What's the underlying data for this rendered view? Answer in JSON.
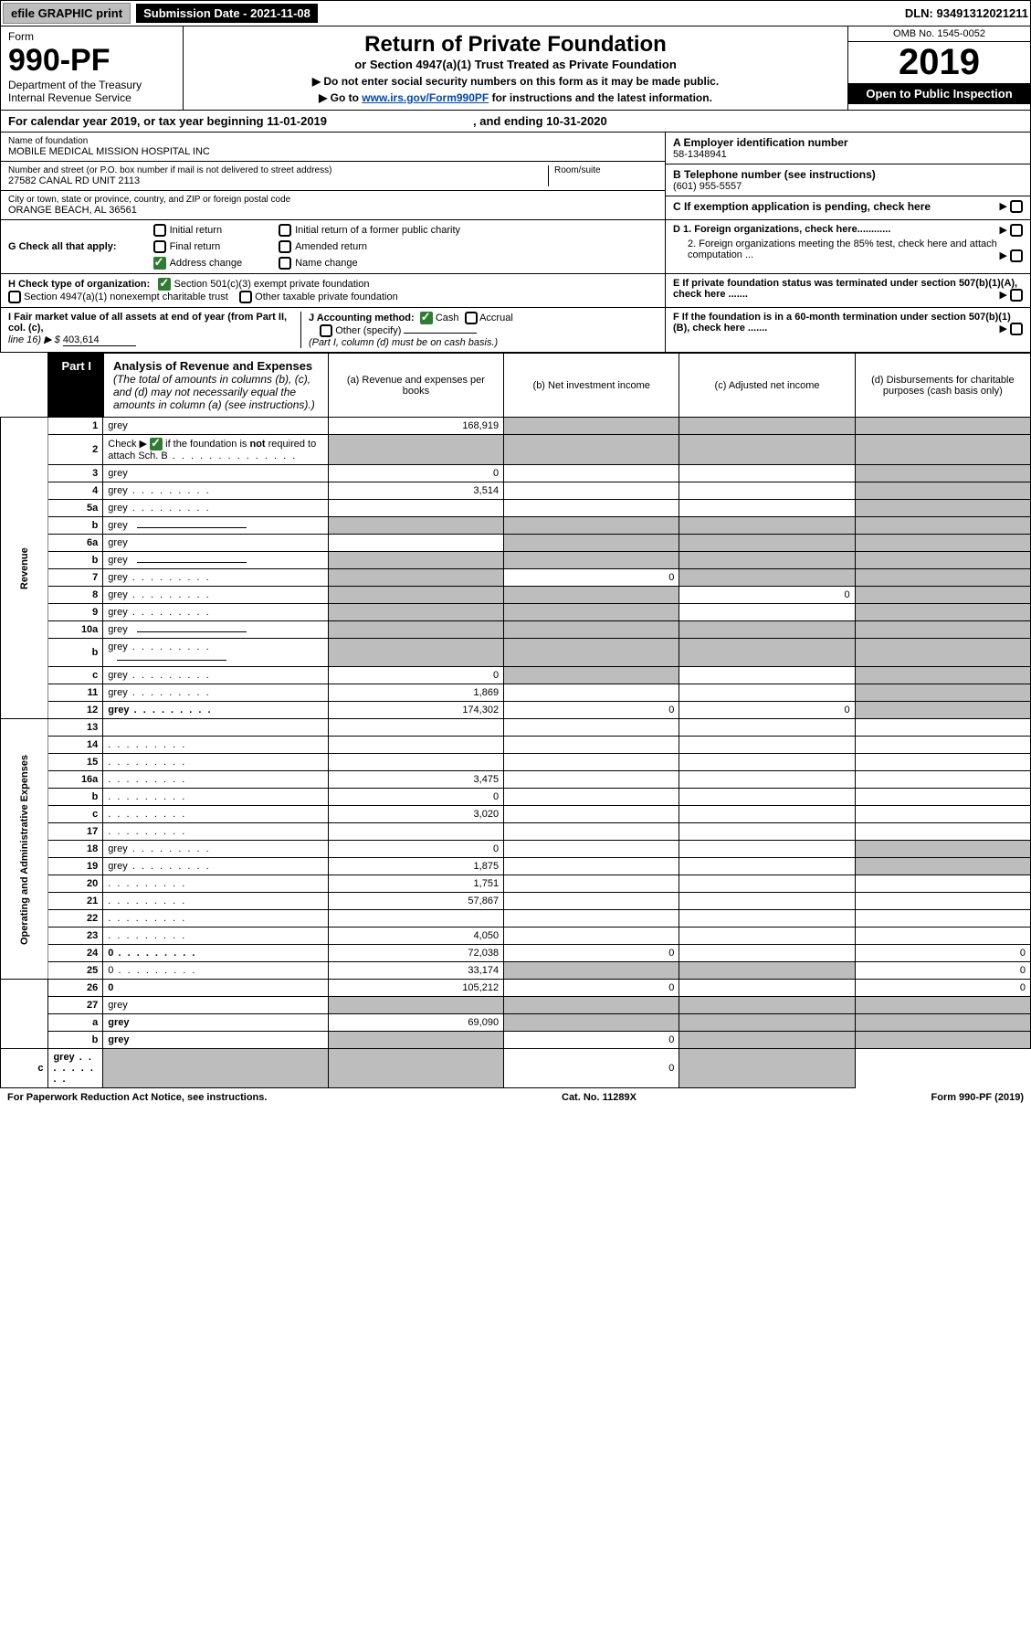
{
  "topbar": {
    "efile": "efile GRAPHIC print",
    "submission": "Submission Date - 2021-11-08",
    "dln": "DLN: 93491312021211"
  },
  "header": {
    "form_word": "Form",
    "form_number": "990-PF",
    "dept1": "Department of the Treasury",
    "dept2": "Internal Revenue Service",
    "title": "Return of Private Foundation",
    "subtitle": "or Section 4947(a)(1) Trust Treated as Private Foundation",
    "note1": "▶ Do not enter social security numbers on this form as it may be made public.",
    "note2_pre": "▶ Go to ",
    "note2_link": "www.irs.gov/Form990PF",
    "note2_post": " for instructions and the latest information.",
    "omb": "OMB No. 1545-0052",
    "year": "2019",
    "open": "Open to Public Inspection"
  },
  "cal": {
    "text": "For calendar year 2019, or tax year beginning 11-01-2019",
    "end": ", and ending 10-31-2020"
  },
  "foundation": {
    "name_lbl": "Name of foundation",
    "name": "MOBILE MEDICAL MISSION HOSPITAL INC",
    "addr_lbl": "Number and street (or P.O. box number if mail is not delivered to street address)",
    "addr": "27582 CANAL RD UNIT 2113",
    "room_lbl": "Room/suite",
    "city_lbl": "City or town, state or province, country, and ZIP or foreign postal code",
    "city": "ORANGE BEACH, AL  36561",
    "ein_lbl": "A Employer identification number",
    "ein": "58-1348941",
    "tel_lbl": "B Telephone number (see instructions)",
    "tel": "(601) 955-5557",
    "c_lbl": "C If exemption application is pending, check here",
    "d1": "D 1. Foreign organizations, check here............",
    "d2": "2. Foreign organizations meeting the 85% test, check here and attach computation ...",
    "e": "E  If private foundation status was terminated under section 507(b)(1)(A), check here .......",
    "f": "F  If the foundation is in a 60-month termination under section 507(b)(1)(B), check here .......",
    "g_lbl": "G Check all that apply:",
    "g_items": [
      "Initial return",
      "Final return",
      "Address change",
      "Initial return of a former public charity",
      "Amended return",
      "Name change"
    ],
    "h_lbl": "H Check type of organization:",
    "h1": "Section 501(c)(3) exempt private foundation",
    "h2": "Section 4947(a)(1) nonexempt charitable trust",
    "h3": "Other taxable private foundation",
    "i_lbl": "I Fair market value of all assets at end of year (from Part II, col. (c),",
    "i_line": "line 16) ▶ $",
    "i_val": "403,614",
    "j_lbl": "J Accounting method:",
    "j_cash": "Cash",
    "j_accrual": "Accrual",
    "j_other": "Other (specify)",
    "j_note": "(Part I, column (d) must be on cash basis.)"
  },
  "part1": {
    "tag": "Part I",
    "title": "Analysis of Revenue and Expenses",
    "title_note": " (The total of amounts in columns (b), (c), and (d) may not necessarily equal the amounts in column (a) (see instructions).)",
    "col_a": "(a)  Revenue and expenses per books",
    "col_b": "(b)  Net investment income",
    "col_c": "(c)  Adjusted net income",
    "col_d": "(d)  Disbursements for charitable purposes (cash basis only)"
  },
  "side_labels": {
    "revenue": "Revenue",
    "expenses": "Operating and Administrative Expenses"
  },
  "rows": [
    {
      "n": "1",
      "d": "grey",
      "a": "168,919",
      "b": "grey",
      "c": "grey"
    },
    {
      "n": "2",
      "d": "grey",
      "a": "grey",
      "b": "grey",
      "c": "grey",
      "chk": true,
      "dots": true
    },
    {
      "n": "3",
      "d": "grey",
      "a": "0",
      "b": "",
      "c": ""
    },
    {
      "n": "4",
      "d": "grey",
      "a": "3,514",
      "b": "",
      "c": "",
      "dots": true
    },
    {
      "n": "5a",
      "d": "grey",
      "a": "",
      "b": "",
      "c": "",
      "dots": true
    },
    {
      "n": "b",
      "d": "grey",
      "a": "grey",
      "b": "grey",
      "c": "grey",
      "inline": true
    },
    {
      "n": "6a",
      "d": "grey",
      "a": "",
      "b": "grey",
      "c": "grey"
    },
    {
      "n": "b",
      "d": "grey",
      "a": "grey",
      "b": "grey",
      "c": "grey",
      "inline": true
    },
    {
      "n": "7",
      "d": "grey",
      "a": "grey",
      "b": "0",
      "c": "grey",
      "dots": true
    },
    {
      "n": "8",
      "d": "grey",
      "a": "grey",
      "b": "grey",
      "c": "0",
      "dots": true
    },
    {
      "n": "9",
      "d": "grey",
      "a": "grey",
      "b": "grey",
      "c": "",
      "dots": true
    },
    {
      "n": "10a",
      "d": "grey",
      "a": "grey",
      "b": "grey",
      "c": "grey",
      "inline": true
    },
    {
      "n": "b",
      "d": "grey",
      "a": "grey",
      "b": "grey",
      "c": "grey",
      "inline": true,
      "dots": true
    },
    {
      "n": "c",
      "d": "grey",
      "a": "0",
      "b": "grey",
      "c": "",
      "dots": true
    },
    {
      "n": "11",
      "d": "grey",
      "a": "1,869",
      "b": "",
      "c": "",
      "dots": true
    },
    {
      "n": "12",
      "d": "grey",
      "a": "174,302",
      "b": "0",
      "c": "0",
      "bold": true,
      "dots": true
    },
    {
      "n": "13",
      "d": "",
      "a": "",
      "b": "",
      "c": ""
    },
    {
      "n": "14",
      "d": "",
      "a": "",
      "b": "",
      "c": "",
      "dots": true
    },
    {
      "n": "15",
      "d": "",
      "a": "",
      "b": "",
      "c": "",
      "dots": true
    },
    {
      "n": "16a",
      "d": "",
      "a": "3,475",
      "b": "",
      "c": "",
      "dots": true
    },
    {
      "n": "b",
      "d": "",
      "a": "0",
      "b": "",
      "c": "",
      "dots": true
    },
    {
      "n": "c",
      "d": "",
      "a": "3,020",
      "b": "",
      "c": "",
      "dots": true
    },
    {
      "n": "17",
      "d": "",
      "a": "",
      "b": "",
      "c": "",
      "dots": true
    },
    {
      "n": "18",
      "d": "grey",
      "a": "0",
      "b": "",
      "c": "",
      "dots": true
    },
    {
      "n": "19",
      "d": "grey",
      "a": "1,875",
      "b": "",
      "c": "",
      "dots": true
    },
    {
      "n": "20",
      "d": "",
      "a": "1,751",
      "b": "",
      "c": "",
      "dots": true
    },
    {
      "n": "21",
      "d": "",
      "a": "57,867",
      "b": "",
      "c": "",
      "dots": true
    },
    {
      "n": "22",
      "d": "",
      "a": "",
      "b": "",
      "c": "",
      "dots": true
    },
    {
      "n": "23",
      "d": "",
      "a": "4,050",
      "b": "",
      "c": "",
      "dots": true
    },
    {
      "n": "24",
      "d": "0",
      "a": "72,038",
      "b": "0",
      "c": "",
      "bold": true,
      "dots": true
    },
    {
      "n": "25",
      "d": "0",
      "a": "33,174",
      "b": "grey",
      "c": "grey",
      "dots": true
    },
    {
      "n": "26",
      "d": "0",
      "a": "105,212",
      "b": "0",
      "c": "",
      "bold": true
    },
    {
      "n": "27",
      "d": "grey",
      "a": "grey",
      "b": "grey",
      "c": "grey"
    },
    {
      "n": "a",
      "d": "grey",
      "a": "69,090",
      "b": "grey",
      "c": "grey",
      "bold": true
    },
    {
      "n": "b",
      "d": "grey",
      "a": "grey",
      "b": "0",
      "c": "grey",
      "bold": true
    },
    {
      "n": "c",
      "d": "grey",
      "a": "grey",
      "b": "grey",
      "c": "0",
      "bold": true,
      "dots": true
    }
  ],
  "footer": {
    "left": "For Paperwork Reduction Act Notice, see instructions.",
    "mid": "Cat. No. 11289X",
    "right": "Form 990-PF (2019)"
  },
  "colors": {
    "grey": "#bdbdbd",
    "black": "#000000",
    "link": "#0047b3",
    "green": "#2e7d32"
  }
}
